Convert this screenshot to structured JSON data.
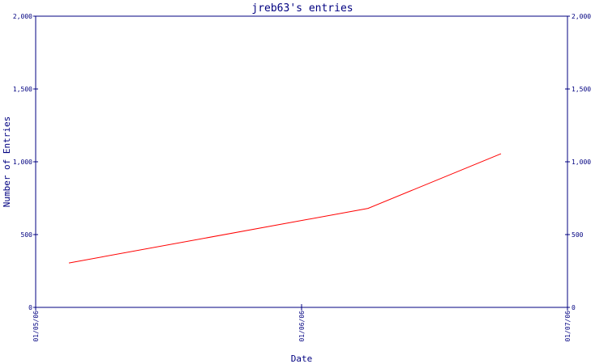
{
  "chart_data": {
    "type": "line",
    "title": "jreb63's entries",
    "xlabel": "Date",
    "ylabel": "Number of Entries",
    "x_tick_labels": [
      "01/05/06",
      "01/06/06",
      "01/07/06"
    ],
    "x_range": [
      "01/05/06",
      "01/07/06"
    ],
    "x": [
      "01/05/06 03:00",
      "01/06/06 06:00",
      "01/06/06 18:00"
    ],
    "ylim": [
      0,
      2000
    ],
    "y_ticks": [
      0,
      500,
      1000,
      1500,
      2000
    ],
    "y_tick_labels": [
      "0",
      "500",
      "1,000",
      "1,500",
      "2,000"
    ],
    "series": [
      {
        "values": [
          305,
          680,
          1055
        ]
      }
    ],
    "grid": false,
    "colors": {
      "line": "#ff0000",
      "axis": "#000080",
      "text": "#000080"
    }
  }
}
